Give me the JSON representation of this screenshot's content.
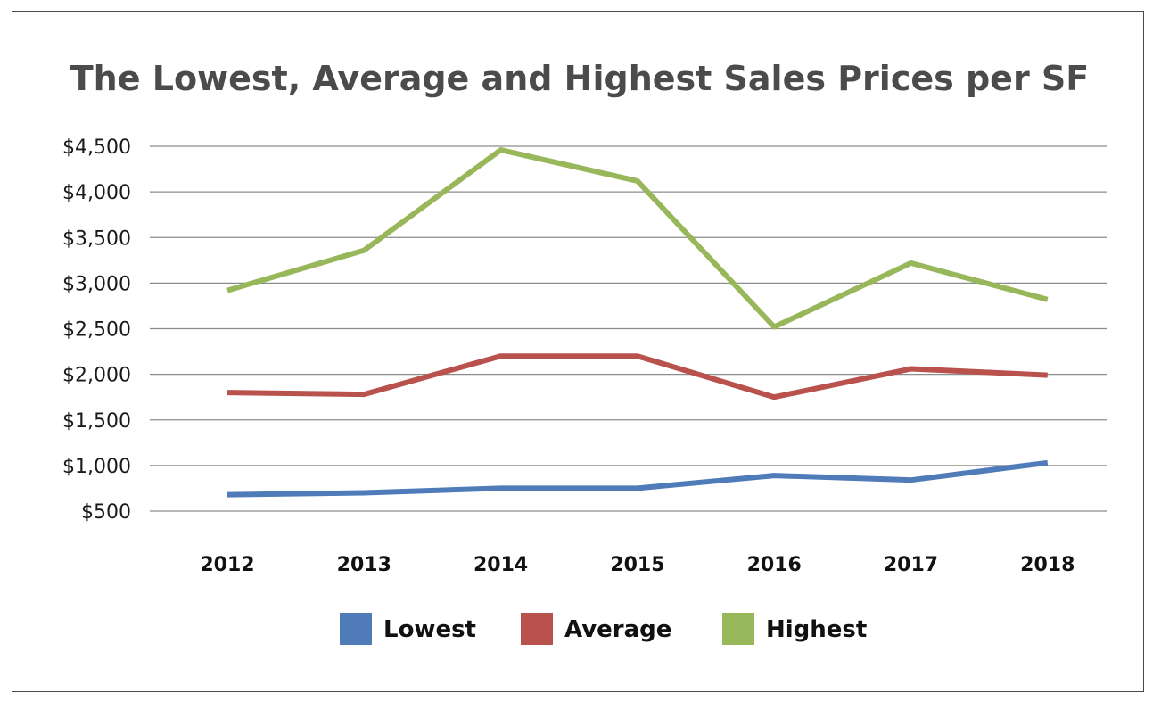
{
  "chart_data": {
    "type": "line",
    "title": "The Lowest, Average and Highest Sales Prices per SF",
    "categories": [
      "2012",
      "2013",
      "2014",
      "2015",
      "2016",
      "2017",
      "2018"
    ],
    "ylim": [
      500,
      4500
    ],
    "yticks": [
      500,
      1000,
      1500,
      2000,
      2500,
      3000,
      3500,
      4000,
      4500
    ],
    "ytick_labels": [
      "$500",
      "$1,000",
      "$1,500",
      "$2,000",
      "$2,500",
      "$3,000",
      "$3,500",
      "$4,000",
      "$4,500"
    ],
    "grid": true,
    "legend_position": "bottom",
    "series": [
      {
        "name": "Lowest",
        "color": "#4f7bb9",
        "values": [
          680,
          700,
          750,
          750,
          890,
          840,
          1030
        ]
      },
      {
        "name": "Average",
        "color": "#b9514c",
        "values": [
          1800,
          1780,
          2200,
          2200,
          1750,
          2060,
          1990
        ]
      },
      {
        "name": "Highest",
        "color": "#97b75a",
        "values": [
          2920,
          3360,
          4460,
          4120,
          2520,
          3220,
          2820
        ]
      }
    ]
  }
}
